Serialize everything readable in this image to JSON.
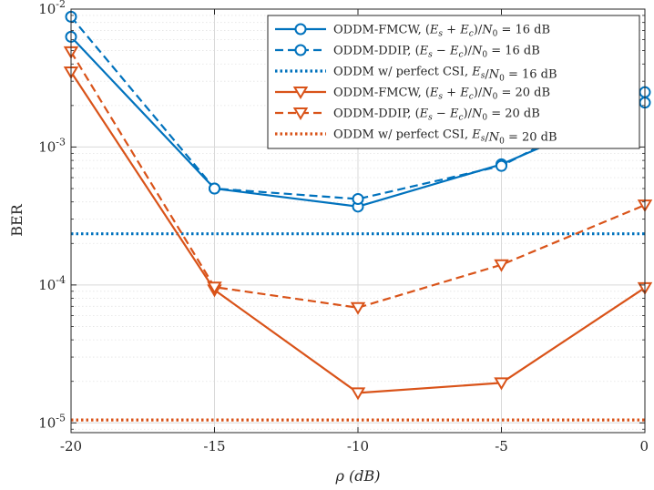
{
  "chart_data": {
    "type": "line",
    "yscale": "log",
    "title": "",
    "xlabel": "ρ (dB)",
    "ylabel": "BER",
    "xlim": [
      -20,
      0
    ],
    "ylim": [
      8.5e-06,
      0.01
    ],
    "grid": true,
    "legend_position": "top-right",
    "x_ticks": [
      {
        "value": -20,
        "label": "-20"
      },
      {
        "value": -15,
        "label": "-15"
      },
      {
        "value": -10,
        "label": "-10"
      },
      {
        "value": -5,
        "label": "-5"
      },
      {
        "value": 0,
        "label": "0"
      }
    ],
    "y_ticks": [
      {
        "value": 0.01,
        "base": "10",
        "exp": "-2"
      },
      {
        "value": 0.001,
        "base": "10",
        "exp": "-3"
      },
      {
        "value": 0.0001,
        "base": "10",
        "exp": "-4"
      },
      {
        "value": 1e-05,
        "base": "10",
        "exp": "-5"
      }
    ],
    "series": [
      {
        "name": "ODDM-FMCW, (Es + Ec)/N0 = 16 dB",
        "color": "#0072BD",
        "style": "solid",
        "marker": "circle",
        "x": [
          -20,
          -15,
          -10,
          -5,
          0
        ],
        "values": [
          0.0063,
          0.0005,
          0.00037,
          0.00075,
          0.0021
        ]
      },
      {
        "name": "ODDM-DDIP, (Es − Ec)/N0 = 16 dB",
        "color": "#0072BD",
        "style": "dashed",
        "marker": "circle",
        "x": [
          -20,
          -15,
          -10,
          -5,
          0
        ],
        "values": [
          0.0088,
          0.0005,
          0.00042,
          0.00073,
          0.0025
        ]
      },
      {
        "name": "ODDM w/ perfect CSI, Es/N0 = 16 dB",
        "color": "#0072BD",
        "style": "dotted",
        "marker": "none",
        "x": [
          -20,
          0
        ],
        "values": [
          0.000235,
          0.000235
        ]
      },
      {
        "name": "ODDM-FMCW, (Es + Ec)/N0 = 20 dB",
        "color": "#D95319",
        "style": "solid",
        "marker": "triangle-down",
        "x": [
          -20,
          -15,
          -10,
          -5,
          0
        ],
        "values": [
          0.0035,
          9.2e-05,
          1.65e-05,
          1.95e-05,
          9.55e-05
        ]
      },
      {
        "name": "ODDM-DDIP, (Es − Ec)/N0 = 20 dB",
        "color": "#D95319",
        "style": "dashed",
        "marker": "triangle-down",
        "x": [
          -20,
          -15,
          -10,
          -5,
          0
        ],
        "values": [
          0.0049,
          9.65e-05,
          6.85e-05,
          0.00014,
          0.00038
        ]
      },
      {
        "name": "ODDM w/ perfect CSI, Es/N0 = 20 dB",
        "color": "#D95319",
        "style": "dotted",
        "marker": "none",
        "x": [
          -20,
          0
        ],
        "values": [
          1.05e-05,
          1.05e-05
        ]
      }
    ],
    "legend": [
      {
        "prefix": "ODDM-FMCW, ",
        "math_parts": [
          "(",
          "E",
          "s",
          " + ",
          "E",
          "c",
          ")/",
          "N",
          "0",
          " = 16 dB"
        ]
      },
      {
        "prefix": "ODDM-DDIP, ",
        "math_parts": [
          "(",
          "E",
          "s",
          " − ",
          "E",
          "c",
          ")/",
          "N",
          "0",
          " = 16 dB"
        ]
      },
      {
        "prefix": "ODDM w/ perfect CSI, ",
        "math_parts": [
          "",
          "E",
          "s",
          "",
          "",
          "",
          "/",
          "N",
          "0",
          " = 16 dB"
        ]
      },
      {
        "prefix": "ODDM-FMCW, ",
        "math_parts": [
          "(",
          "E",
          "s",
          " + ",
          "E",
          "c",
          ")/",
          "N",
          "0",
          " = 20 dB"
        ]
      },
      {
        "prefix": "ODDM-DDIP, ",
        "math_parts": [
          "(",
          "E",
          "s",
          " − ",
          "E",
          "c",
          ")/",
          "N",
          "0",
          " = 20 dB"
        ]
      },
      {
        "prefix": "ODDM w/ perfect CSI, ",
        "math_parts": [
          "",
          "E",
          "s",
          "",
          "",
          "",
          "/",
          "N",
          "0",
          " = 20 dB"
        ]
      }
    ]
  }
}
